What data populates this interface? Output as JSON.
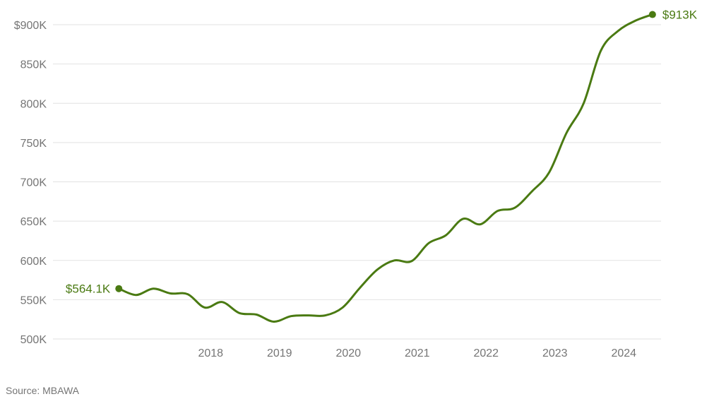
{
  "chart_data": {
    "type": "line",
    "title": "",
    "xlabel": "",
    "ylabel": "",
    "ylim": [
      500,
      900
    ],
    "y_ticks": [
      {
        "value": 500,
        "label": "500K"
      },
      {
        "value": 550,
        "label": "550K"
      },
      {
        "value": 600,
        "label": "600K"
      },
      {
        "value": 650,
        "label": "650K"
      },
      {
        "value": 700,
        "label": "700K"
      },
      {
        "value": 750,
        "label": "750K"
      },
      {
        "value": 800,
        "label": "800K"
      },
      {
        "value": 850,
        "label": "850K"
      },
      {
        "value": 900,
        "label": "$900K"
      }
    ],
    "x_ticks": [
      "2018",
      "2019",
      "2020",
      "2021",
      "2022",
      "2023",
      "2024"
    ],
    "x_range": [
      "2017-01",
      "2024-12"
    ],
    "grid": "horizontal",
    "line_color": "#4a7a12",
    "series": [
      {
        "x": [
          "2017-03",
          "2017-06",
          "2017-09",
          "2017-12",
          "2018-03",
          "2018-06",
          "2018-09",
          "2018-12",
          "2019-03",
          "2019-06",
          "2019-09",
          "2019-12",
          "2020-03",
          "2020-06",
          "2020-09",
          "2020-12",
          "2021-03",
          "2021-06",
          "2021-09",
          "2021-12",
          "2022-03",
          "2022-06",
          "2022-09",
          "2022-12",
          "2023-03",
          "2023-06",
          "2023-09",
          "2023-12",
          "2024-03",
          "2024-06",
          "2024-09",
          "2024-12"
        ],
        "values": [
          564.1,
          556,
          564,
          558,
          557,
          540,
          547,
          533,
          531,
          522,
          529,
          530,
          530,
          540,
          565,
          588,
          600,
          599,
          622,
          632,
          653,
          646,
          663,
          667,
          688,
          712,
          762,
          800,
          867,
          892,
          905,
          913
        ]
      }
    ],
    "annotations": {
      "start": {
        "label": "$564.1K",
        "value": 564.1
      },
      "end": {
        "label": "$913K",
        "value": 913
      }
    }
  },
  "footer": {
    "source": "Source: MBAWA"
  }
}
